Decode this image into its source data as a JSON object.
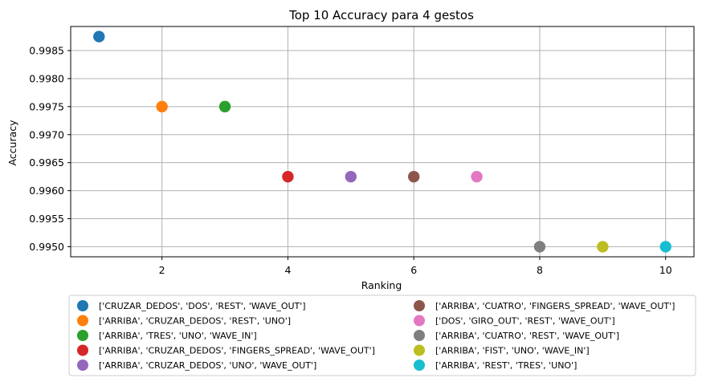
{
  "chart_data": {
    "type": "scatter",
    "title": "Top 10 Accuracy para 4 gestos",
    "xlabel": "Ranking",
    "ylabel": "Accuracy",
    "xlim": [
      0.55,
      10.45
    ],
    "ylim": [
      0.99482,
      0.99893
    ],
    "xticks": [
      2,
      4,
      6,
      8,
      10
    ],
    "yticks": [
      0.995,
      0.9955,
      0.996,
      0.9965,
      0.997,
      0.9975,
      0.998,
      0.9985
    ],
    "xtick_labels": [
      "2",
      "4",
      "6",
      "8",
      "10"
    ],
    "ytick_labels": [
      "0.9950",
      "0.9955",
      "0.9960",
      "0.9965",
      "0.9970",
      "0.9975",
      "0.9980",
      "0.9985"
    ],
    "grid": true,
    "legend_position": "bottom, outside plot, two columns",
    "series": [
      {
        "name": "['CRUZAR_DEDOS', 'DOS', 'REST', 'WAVE_OUT']",
        "x": 1,
        "y": 0.99875,
        "color": "#1f77b4"
      },
      {
        "name": "['ARRIBA', 'CRUZAR_DEDOS', 'REST', 'UNO']",
        "x": 2,
        "y": 0.9975,
        "color": "#ff7f0e"
      },
      {
        "name": "['ARRIBA', 'TRES', 'UNO', 'WAVE_IN']",
        "x": 3,
        "y": 0.9975,
        "color": "#2ca02c"
      },
      {
        "name": "['ARRIBA', 'CRUZAR_DEDOS', 'FINGERS_SPREAD', 'WAVE_OUT']",
        "x": 4,
        "y": 0.99625,
        "color": "#d62728"
      },
      {
        "name": "['ARRIBA', 'CRUZAR_DEDOS', 'UNO', 'WAVE_OUT']",
        "x": 5,
        "y": 0.99625,
        "color": "#9467bd"
      },
      {
        "name": "['ARRIBA', 'CUATRO', 'FINGERS_SPREAD', 'WAVE_OUT']",
        "x": 6,
        "y": 0.99625,
        "color": "#8c564b"
      },
      {
        "name": "['DOS', 'GIRO_OUT', 'REST', 'WAVE_OUT']",
        "x": 7,
        "y": 0.99625,
        "color": "#e377c2"
      },
      {
        "name": "['ARRIBA', 'CUATRO', 'REST', 'WAVE_OUT']",
        "x": 8,
        "y": 0.995,
        "color": "#7f7f7f"
      },
      {
        "name": "['ARRIBA', 'FIST', 'UNO', 'WAVE_IN']",
        "x": 9,
        "y": 0.995,
        "color": "#bcbd22"
      },
      {
        "name": "['ARRIBA', 'REST', 'TRES', 'UNO']",
        "x": 10,
        "y": 0.995,
        "color": "#17becf"
      }
    ]
  }
}
